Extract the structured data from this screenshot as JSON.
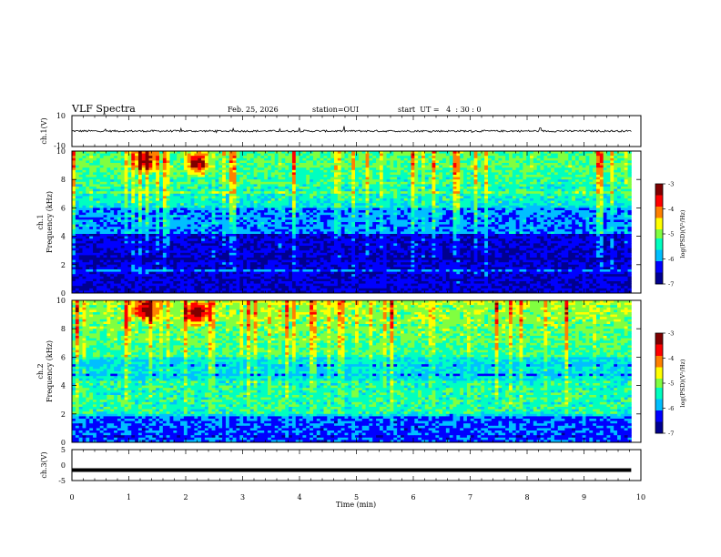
{
  "header": {
    "title": "VLF Spectra",
    "date": "Feb. 25, 2026",
    "station": "station=OUI",
    "start_ut": "start  UT =   4  : 30 : 0"
  },
  "chart_data": [
    {
      "type": "line",
      "panel": "ch1-waveform",
      "ylabel": "ch.1(V)",
      "ylim": [
        -10,
        10
      ],
      "yticks": [
        "10",
        "-10"
      ],
      "baseline": 0,
      "noise_amplitude": 1.2
    },
    {
      "type": "heatmap",
      "panel": "ch1-spectrogram",
      "ylabel": [
        "ch.1",
        "Frequency (kHz)"
      ],
      "ylim": [
        0,
        10
      ],
      "yticks": [
        "0",
        "2",
        "4",
        "6",
        "8",
        "10"
      ],
      "colorbar": {
        "label": "log(PSD)(V²/Hz)",
        "range": [
          -7,
          -3
        ],
        "ticks": [
          "-3",
          "-4",
          "-5",
          "-6",
          "-7"
        ]
      },
      "hot_spots": [
        {
          "t": 1.3,
          "f": 9.4
        },
        {
          "t": 2.2,
          "f": 9.2
        }
      ]
    },
    {
      "type": "heatmap",
      "panel": "ch2-spectrogram",
      "ylabel": [
        "ch.2",
        "Frequency (kHz)"
      ],
      "ylim": [
        0,
        10
      ],
      "yticks": [
        "0",
        "2",
        "4",
        "6",
        "8",
        "10"
      ],
      "colorbar": {
        "label": "log(PSD)(V²/Hz)",
        "range": [
          -7,
          -3
        ],
        "ticks": [
          "-3",
          "-4",
          "-5",
          "-6",
          "-7"
        ]
      },
      "hot_spots": [
        {
          "t": 1.3,
          "f": 9.4
        },
        {
          "t": 2.2,
          "f": 9.1
        }
      ]
    },
    {
      "type": "line",
      "panel": "ch3-waveform",
      "ylabel": "ch.3(V)",
      "ylim": [
        -5,
        5
      ],
      "yticks": [
        "5",
        "0",
        "-5"
      ],
      "baseline": -1.6
    }
  ],
  "xaxis": {
    "label": "Time (min)",
    "range": [
      0,
      10
    ],
    "ticks": [
      "0",
      "1",
      "2",
      "3",
      "4",
      "5",
      "6",
      "7",
      "8",
      "9",
      "10"
    ],
    "data_end": 9.83
  },
  "colors": {
    "colormap": [
      "#00008f",
      "#0000ff",
      "#00bfff",
      "#00ffc0",
      "#80ff40",
      "#ffff00",
      "#ff8000",
      "#ff0000",
      "#800000"
    ]
  }
}
